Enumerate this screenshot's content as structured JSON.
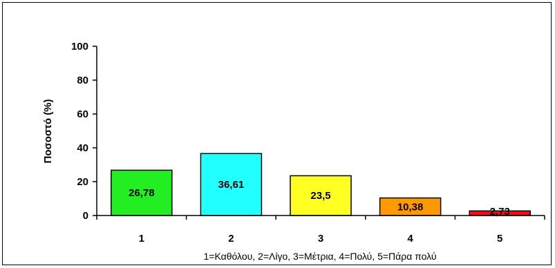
{
  "chart_data": {
    "type": "bar",
    "categories": [
      "1",
      "2",
      "3",
      "4",
      "5"
    ],
    "values": [
      26.78,
      36.61,
      23.5,
      10.38,
      2.73
    ],
    "data_labels": [
      "26,78",
      "36,61",
      "23,5",
      "10,38",
      "2,73"
    ],
    "colors": [
      "#22ee22",
      "#22ffff",
      "#ffff22",
      "#ff9900",
      "#ee1111"
    ],
    "ylabel": "Ποσοστό (%)",
    "xlabel": "1=Καθόλου, 2=Λίγο, 3=Μέτρια, 4=Πολύ, 5=Πάρα πολύ",
    "ylim": [
      0,
      100
    ],
    "yticks": [
      "0",
      "20",
      "40",
      "60",
      "80",
      "100"
    ],
    "grid": false,
    "legend": "none"
  }
}
